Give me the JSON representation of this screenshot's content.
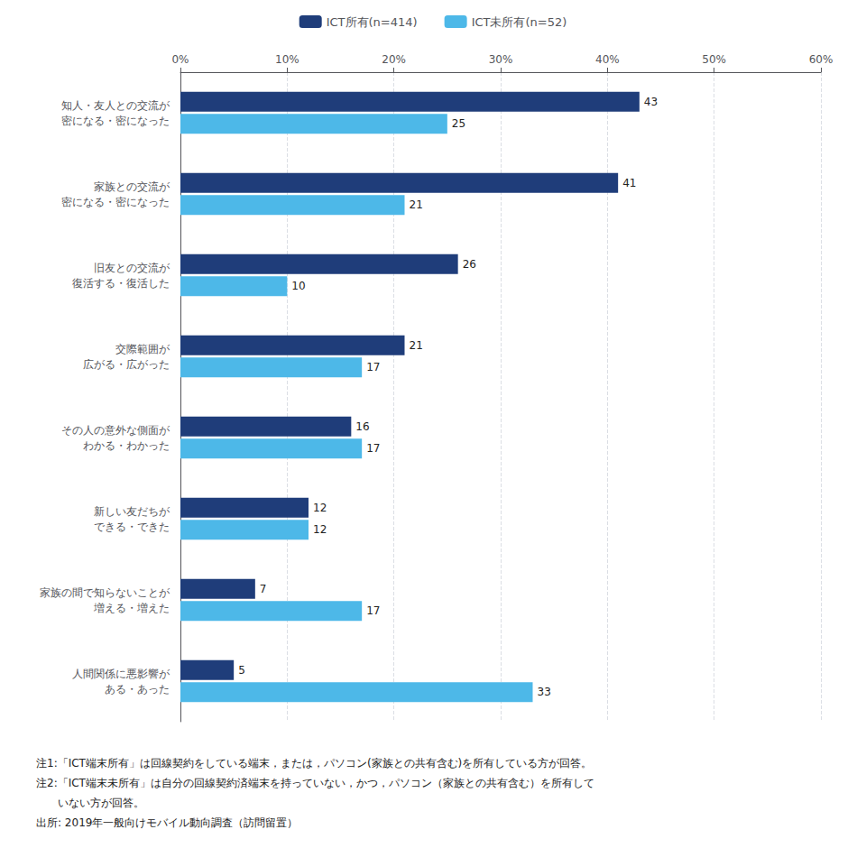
{
  "chart_data": {
    "type": "bar",
    "orientation": "horizontal",
    "categories": [
      "知人・友人との交流が\n密になる・密になった",
      "家族との交流が\n密になる・密になった",
      "旧友との交流が\n復活する・復活した",
      "交際範囲が\n広がる・広がった",
      "その人の意外な側面が\nわかる・わかった",
      "新しい友だちが\nできる・できた",
      "家族の間で知らないことが\n増える・増えた",
      "人間関係に悪影響が\nある・あった"
    ],
    "series": [
      {
        "name": "ICT所有(n=414)",
        "color": "#1f3d7a",
        "values": [
          43,
          41,
          26,
          21,
          16,
          12,
          7,
          5
        ]
      },
      {
        "name": "ICT未所有(n=52)",
        "color": "#4db8e8",
        "values": [
          25,
          21,
          10,
          17,
          17,
          12,
          17,
          33
        ]
      }
    ],
    "xlim": [
      0,
      60
    ],
    "xticks": [
      {
        "value": 0,
        "label": "0%"
      },
      {
        "value": 10,
        "label": "10%"
      },
      {
        "value": 20,
        "label": "20%"
      },
      {
        "value": 30,
        "label": "30%"
      },
      {
        "value": 40,
        "label": "40%"
      },
      {
        "value": 50,
        "label": "50%"
      },
      {
        "value": 60,
        "label": "60%"
      }
    ],
    "grid": true,
    "legend": "top",
    "data_labels": true,
    "annotations": [
      "注1:「ICT端末所有」は回線契約をしている端末，または，パソコン(家族との共有含む)を所有している方が回答。",
      "注2:「ICT端末未所有」は自分の回線契約済端末を持っていない，かつ，パソコン（家族との共有含む）を所有して",
      "　　いない方が回答。",
      "出所: 2019年一般向けモバイル動向調査（訪問留置）"
    ]
  }
}
